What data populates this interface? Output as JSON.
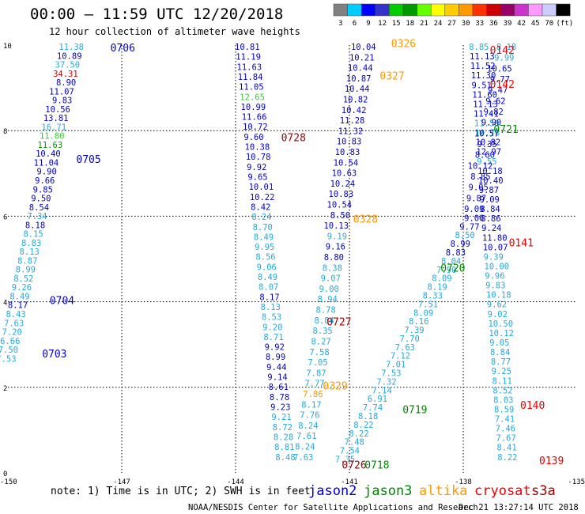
{
  "title": "00:00 – 11:59 UTC 12/20/2018",
  "subtitle": "12 hour collection of altimeter wave heights",
  "footer_left": "NOAA/NESDIS Center for Satellite Applications and Research",
  "footer_right": "Dec 21 13:27:14 UTC 2018",
  "note": "note:  1) Time is in UTC; 2) SWH is in feet",
  "satellites": [
    {
      "name": "jason2",
      "color": "#0000cc"
    },
    {
      "name": "jason3",
      "color": "#008800"
    },
    {
      "name": "altika",
      "color": "#ff9900"
    },
    {
      "name": "cryosat",
      "color": "#ee0000"
    },
    {
      "name": "s3a",
      "color": "#990000"
    }
  ],
  "colorbar": {
    "labels": [
      "3",
      "6",
      "9",
      "12",
      "15",
      "18",
      "21",
      "24",
      "27",
      "30",
      "33",
      "36",
      "39",
      "42",
      "45",
      "70",
      "(ft)"
    ],
    "colors": [
      "#808080",
      "#00ccff",
      "#0000ff",
      "#3333cc",
      "#00cc00",
      "#009900",
      "#66ff00",
      "#ffff00",
      "#ffcc00",
      "#ff9900",
      "#ff3300",
      "#cc0000",
      "#990066",
      "#cc33cc",
      "#ff99ff",
      "#ccccff",
      "#000000"
    ]
  },
  "chart_data": {
    "type": "scatter",
    "title": "00:00 – 11:59 UTC 12/20/2018",
    "subtitle": "12 hour collection of altimeter wave heights",
    "xlim": [
      -150,
      -135
    ],
    "ylim": [
      0,
      10
    ],
    "x_ticks": [
      "-150",
      "-147",
      "-144",
      "-141",
      "-138",
      "-135"
    ],
    "x_tick_values": [
      -150,
      -147,
      -144,
      -141,
      -138,
      -135
    ],
    "y_ticks": [
      "0",
      "2",
      "4",
      "6",
      "8",
      "10"
    ],
    "y_tick_values": [
      0,
      2,
      4,
      6,
      8,
      10
    ],
    "grid": true,
    "value_colors": {
      "B": "#0000cc",
      "C": "#22aadd",
      "G": "#33cc33",
      "D": "#009900",
      "R": "#cc0000",
      "O": "#ff9900",
      "M": "#880000"
    },
    "tracks": [
      {
        "x0": -148.0,
        "y0": 10.0,
        "x1": -149.78,
        "y1": 2.6,
        "lean": "left",
        "colors": "CBCRBBBBBCGDBBBBBBBCBCCCCCCCCBCCCCCC",
        "values": [
          "11.38",
          "10.89",
          "37.50",
          "34.31",
          "8.90",
          "11.07",
          "9.83",
          "10.56",
          "13.81",
          "16.71",
          "11.80",
          "11.63",
          "10.40",
          "11.04",
          "9.90",
          "9.66",
          "9.85",
          "9.50",
          "8.54",
          "7.34",
          "8.18",
          "8.15",
          "8.83",
          "8.13",
          "8.87",
          "8.99",
          "8.52",
          "9.26",
          "8.49",
          "8.17",
          "8.43",
          "7.63",
          "7.20",
          "6.66",
          "7.50",
          "7.53"
        ]
      },
      {
        "x0": -144.02,
        "y0": 10.0,
        "x1": -142.95,
        "y1": 0.3,
        "lean": "right",
        "colors": "BBBBBGBBBBBBBBBBBCCCCCCCCBCCCCBBBBBBBCCCCCCCCCCC",
        "values": [
          "10.81",
          "11.19",
          "11.63",
          "11.84",
          "11.05",
          "12.65",
          "10.99",
          "11.66",
          "10.72",
          "9.60",
          "10.38",
          "10.78",
          "9.92",
          "9.65",
          "10.01",
          "10.22",
          "8.42",
          "8.24",
          "8.70",
          "8.49",
          "9.95",
          "8.56",
          "9.06",
          "8.49",
          "8.07",
          "8.17",
          "8.13",
          "8.53",
          "9.20",
          "8.71",
          "9.92",
          "8.99",
          "9.44",
          "9.14",
          "8.61",
          "8.78",
          "9.23",
          "9.21",
          "8.72",
          "8.28",
          "8.81",
          "8.48"
        ]
      },
      {
        "x0": -140.3,
        "y0": 10.0,
        "x1": -141.95,
        "y1": 0.3,
        "lean": "left",
        "colors": "BBBBBBBBBBBBBBBBBBCBBCCCCCCCCCCCCOCCCCCCCCCCCCCC",
        "values": [
          "10.04",
          "10.21",
          "10.44",
          "10.87",
          "10.44",
          "10.82",
          "10.42",
          "11.28",
          "11.32",
          "10.83",
          "10.83",
          "10.54",
          "10.63",
          "10.24",
          "10.83",
          "10.54",
          "8.50",
          "10.13",
          "9.19",
          "9.16",
          "8.80",
          "8.38",
          "9.07",
          "9.00",
          "8.94",
          "8.78",
          "8.84",
          "8.35",
          "8.27",
          "7.58",
          "7.05",
          "7.87",
          "7.77",
          "7.86",
          "8.17",
          "7.76",
          "8.24",
          "7.61",
          "8.24",
          "7.63"
        ]
      },
      {
        "x0": -137.45,
        "y0": 6.0,
        "x1": -140.85,
        "y1": 0.25,
        "lean": "left",
        "colors": "BBCBBCCCCCCCCCCCCCCCCCCCCCCCCCCCCCCCCCCC",
        "values": [
          "9.06",
          "9.77",
          "8.50",
          "8.99",
          "8.83",
          "8.04",
          "7.90",
          "8.09",
          "8.19",
          "8.33",
          "7.51",
          "8.09",
          "8.16",
          "7.39",
          "7.70",
          "7.63",
          "7.12",
          "7.01",
          "7.53",
          "7.32",
          "7.14",
          "6.91",
          "7.74",
          "8.18",
          "8.22",
          "8.22",
          "7.48",
          "7.54",
          "7.35"
        ]
      },
      {
        "x0": -137.85,
        "y0": 10.0,
        "x1": -137.1,
        "y1": 0.3,
        "lean": "right",
        "colors": "CBBBBBBBCCBBCBBBBBBBBBCCCCCCCCCCCCCCCCCCCCCCCCC",
        "values": [
          "8.85",
          "11.13",
          "11.52",
          "11.30",
          "9.51",
          "11.60",
          "11.13",
          "11.41",
          "11.50",
          "10.78",
          "10.82",
          "12.97",
          "9.55",
          "10.18",
          "10.40",
          "9.87",
          "9.09",
          "8.84",
          "8.86",
          "9.24",
          "11.80",
          "10.07",
          "9.39",
          "10.00",
          "9.96",
          "9.83",
          "10.18",
          "9.62",
          "9.02",
          "10.50",
          "10.12",
          "9.05",
          "8.84",
          "8.77",
          "9.25",
          "8.11",
          "8.52",
          "8.03",
          "8.59",
          "7.41",
          "7.46",
          "7.67",
          "8.41",
          "8.22"
        ]
      },
      {
        "x0": -136.6,
        "y0": 10.0,
        "x1": -137.45,
        "y1": 6.1,
        "lean": "left",
        "colors": "CCBBBBBBBBBBBBBBBBBBBBBB",
        "values": [
          "8.18",
          "9.99",
          "10.65",
          "9.77",
          "9.47",
          "9.62",
          "9.82",
          "9.90",
          "10.57",
          "9.35",
          "8.60",
          "10.12",
          "8.85",
          "9.05",
          "9.87",
          "9.09"
        ]
      }
    ],
    "pass_labels": [
      {
        "text": "0706",
        "x": -147.3,
        "y": 9.85,
        "sat": "jason2"
      },
      {
        "text": "0705",
        "x": -148.2,
        "y": 7.25,
        "sat": "jason2"
      },
      {
        "text": "0704",
        "x": -148.9,
        "y": 3.95,
        "sat": "jason2"
      },
      {
        "text": "0703",
        "x": -149.1,
        "y": 2.7,
        "sat": "jason2"
      },
      {
        "text": "0728",
        "x": -142.8,
        "y": 7.75,
        "sat": "s3a"
      },
      {
        "text": "0727",
        "x": -141.6,
        "y": 3.45,
        "sat": "s3a"
      },
      {
        "text": "0726",
        "x": -141.2,
        "y": 0.1,
        "sat": "s3a"
      },
      {
        "text": "0326",
        "x": -139.9,
        "y": 9.95,
        "sat": "altika"
      },
      {
        "text": "0327",
        "x": -140.2,
        "y": 9.2,
        "sat": "altika"
      },
      {
        "text": "0328",
        "x": -140.9,
        "y": 5.85,
        "sat": "altika"
      },
      {
        "text": "0329",
        "x": -141.7,
        "y": 1.95,
        "sat": "altika"
      },
      {
        "text": "0721",
        "x": -137.2,
        "y": 7.95,
        "sat": "jason3"
      },
      {
        "text": "0720",
        "x": -138.6,
        "y": 4.7,
        "sat": "jason3"
      },
      {
        "text": "0719",
        "x": -139.6,
        "y": 1.4,
        "sat": "jason3"
      },
      {
        "text": "0718",
        "x": -140.6,
        "y": 0.1,
        "sat": "jason3"
      },
      {
        "text": "0142",
        "x": -137.3,
        "y": 9.8,
        "sat": "cryosat"
      },
      {
        "text": "0142",
        "x": -137.3,
        "y": 9.0,
        "sat": "cryosat"
      },
      {
        "text": "0141",
        "x": -136.8,
        "y": 5.3,
        "sat": "cryosat"
      },
      {
        "text": "0140",
        "x": -136.5,
        "y": 1.5,
        "sat": "cryosat"
      },
      {
        "text": "0139",
        "x": -136.0,
        "y": 0.2,
        "sat": "cryosat"
      }
    ]
  }
}
